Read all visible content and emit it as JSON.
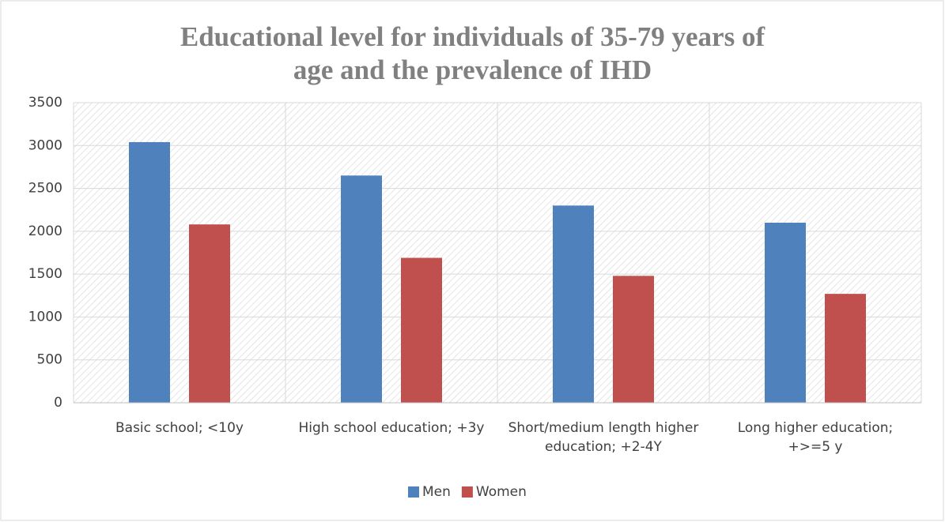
{
  "chart_data": {
    "type": "bar",
    "title": "Educational level for individuals of 35-79 years of age and the prevalence of IHD",
    "categories": [
      "Basic school; <10y",
      "High school education; +3y",
      "Short/medium length higher education; +2-4Y",
      "Long higher education; +>=5 y"
    ],
    "series": [
      {
        "name": "Men",
        "color": "#4f81bd",
        "values": [
          3040,
          2650,
          2300,
          2100
        ]
      },
      {
        "name": "Women",
        "color": "#c0504d",
        "values": [
          2080,
          1690,
          1480,
          1270
        ]
      }
    ],
    "ylim": [
      0,
      3500
    ],
    "yticks": [
      0,
      500,
      1000,
      1500,
      2000,
      2500,
      3000,
      3500
    ],
    "grid": true,
    "legend": "bottom"
  }
}
